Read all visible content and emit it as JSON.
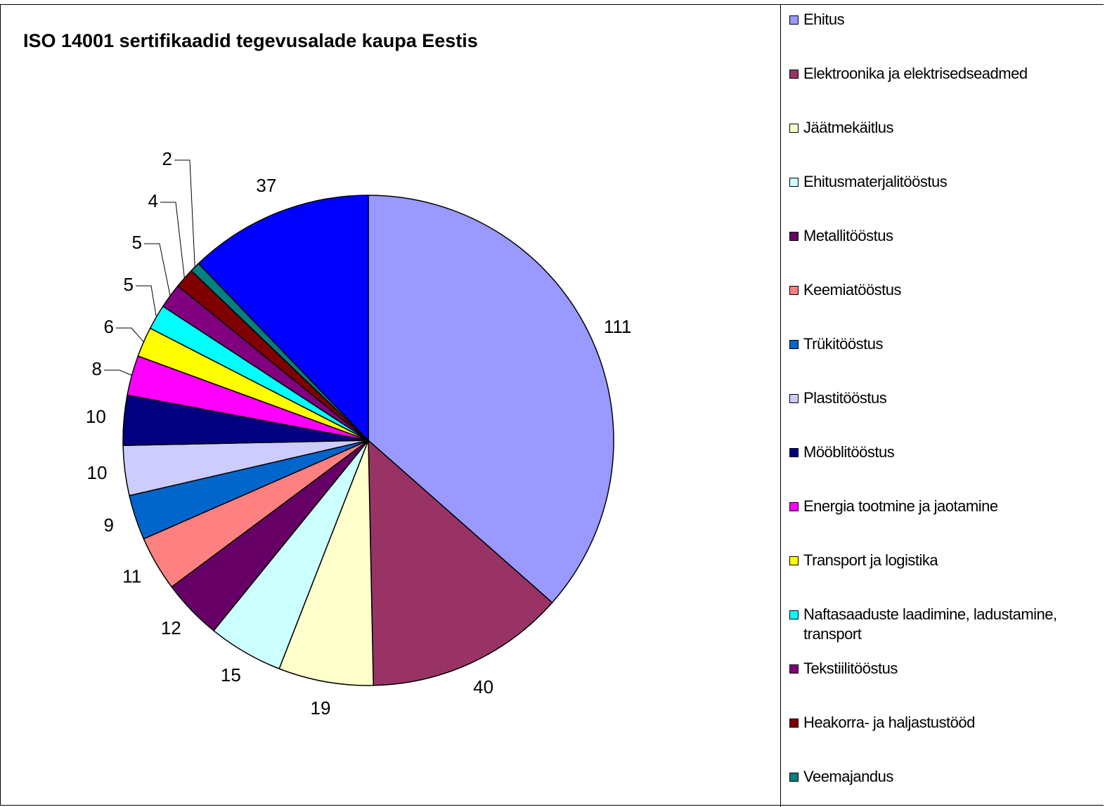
{
  "chart_data": {
    "type": "pie",
    "title": "ISO 14001 sertifikaadid tegevusalade kaupa Eestis",
    "categories": [
      "Ehitus",
      "Elektroonika ja elektrisedseadmed",
      "Jäätmekäitlus",
      "Ehitusmaterjalitööstus",
      "Metallitööstus",
      "Keemiatööstus",
      "Trükitööstus",
      "Plastitööstus",
      "Mööblitööstus",
      "Energia tootmine ja jaotamine",
      "Transport ja logistika",
      "Naftasaaduste laadimine, ladustamine, transport",
      "Tekstiilitööstus",
      "Heakorra- ja haljastustööd",
      "Veemajandus",
      null
    ],
    "values": [
      111,
      40,
      19,
      15,
      12,
      11,
      9,
      10,
      10,
      8,
      6,
      5,
      5,
      4,
      2,
      37
    ],
    "colors": [
      "#9999ff",
      "#993366",
      "#ffffcc",
      "#ccffff",
      "#660066",
      "#ff8080",
      "#0066cc",
      "#ccccff",
      "#000080",
      "#ff00ff",
      "#ffff00",
      "#00ffff",
      "#800080",
      "#800000",
      "#008080",
      "#0000ff"
    ],
    "legend": "right"
  }
}
